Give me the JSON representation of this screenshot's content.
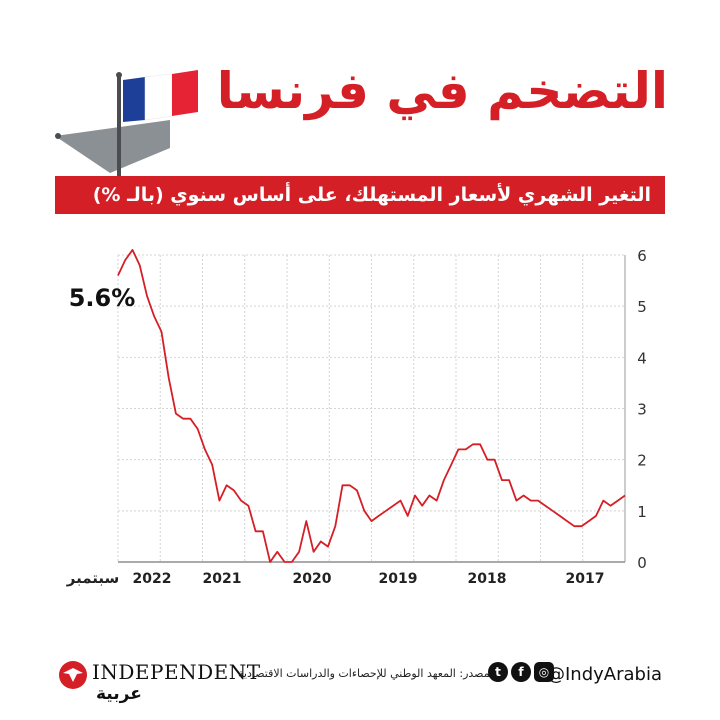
{
  "title": "التضخم في فرنسا",
  "subtitle": "التغير الشهري لأسعار المستهلك، على أساس سنوي (بالـ %)",
  "colors": {
    "accent": "#d51f26",
    "flag_blue": "#1e3f98",
    "flag_red": "#e52335"
  },
  "chart_data": {
    "type": "line",
    "title": "التغير الشهري لأسعار المستهلك، على أساس سنوي (بالـ %)",
    "xlabel": "",
    "ylabel": "",
    "ylim": [
      0,
      6
    ],
    "y_ticks": [
      "0",
      "1",
      "2",
      "3",
      "4",
      "5",
      "6"
    ],
    "x_tick_labels": [
      "2017",
      "2018",
      "2019",
      "2020",
      "2021",
      "2022"
    ],
    "latest_month_label": "سبتمبر",
    "annotation": "5.6%",
    "series": [
      {
        "name": "inflation_yoy",
        "note": "values ordered from oldest (2017, right) to latest (Sept 2022, left)",
        "values": [
          1.3,
          1.2,
          1.1,
          1.2,
          0.9,
          0.8,
          0.7,
          0.7,
          0.8,
          0.9,
          1.0,
          1.1,
          1.2,
          1.2,
          1.3,
          1.2,
          1.6,
          1.6,
          2.0,
          2.0,
          2.3,
          2.3,
          2.2,
          2.2,
          1.9,
          1.6,
          1.2,
          1.3,
          1.1,
          1.3,
          0.9,
          1.2,
          1.1,
          1.0,
          0.9,
          0.8,
          1.0,
          1.4,
          1.5,
          1.5,
          0.7,
          0.3,
          0.4,
          0.2,
          0.8,
          0.2,
          0.0,
          0.0,
          0.2,
          0.0,
          0.6,
          0.6,
          1.1,
          1.2,
          1.4,
          1.5,
          1.2,
          1.9,
          2.2,
          2.6,
          2.8,
          2.8,
          2.9,
          3.6,
          4.5,
          4.8,
          5.2,
          5.8,
          6.1,
          5.9,
          5.6
        ]
      }
    ]
  },
  "footer": {
    "handle": "@IndyArabia",
    "social_icons": [
      "instagram-icon",
      "facebook-icon",
      "twitter-icon"
    ],
    "source": "المصدر: المعهد الوطني للإحصاءات والدراسات الاقتصادية",
    "logo_text": "INDEPENDENT",
    "logo_arabic": "عربية"
  }
}
